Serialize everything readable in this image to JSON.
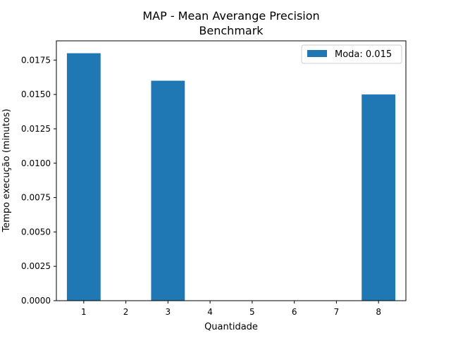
{
  "chart_data": {
    "type": "bar",
    "title_line1": "MAP - Mean Averange Precision",
    "title_line2": "Benchmark",
    "xlabel": "Quantidade",
    "ylabel": "Tempo execução (minutos)",
    "categories": [
      "1",
      "2",
      "3",
      "4",
      "5",
      "6",
      "7",
      "8"
    ],
    "values": [
      0.018,
      0,
      0.016,
      0,
      0,
      0,
      0,
      0.015
    ],
    "ylim": [
      0,
      0.0189
    ],
    "yticks": [
      "0.0000",
      "0.0025",
      "0.0050",
      "0.0075",
      "0.0100",
      "0.0125",
      "0.0150",
      "0.0175"
    ],
    "ytick_values": [
      0,
      0.0025,
      0.005,
      0.0075,
      0.01,
      0.0125,
      0.015,
      0.0175
    ],
    "grid": false,
    "legend": {
      "label": "Moda: 0.015",
      "placement": "top-right"
    },
    "bar_color": "#1f77b4"
  }
}
